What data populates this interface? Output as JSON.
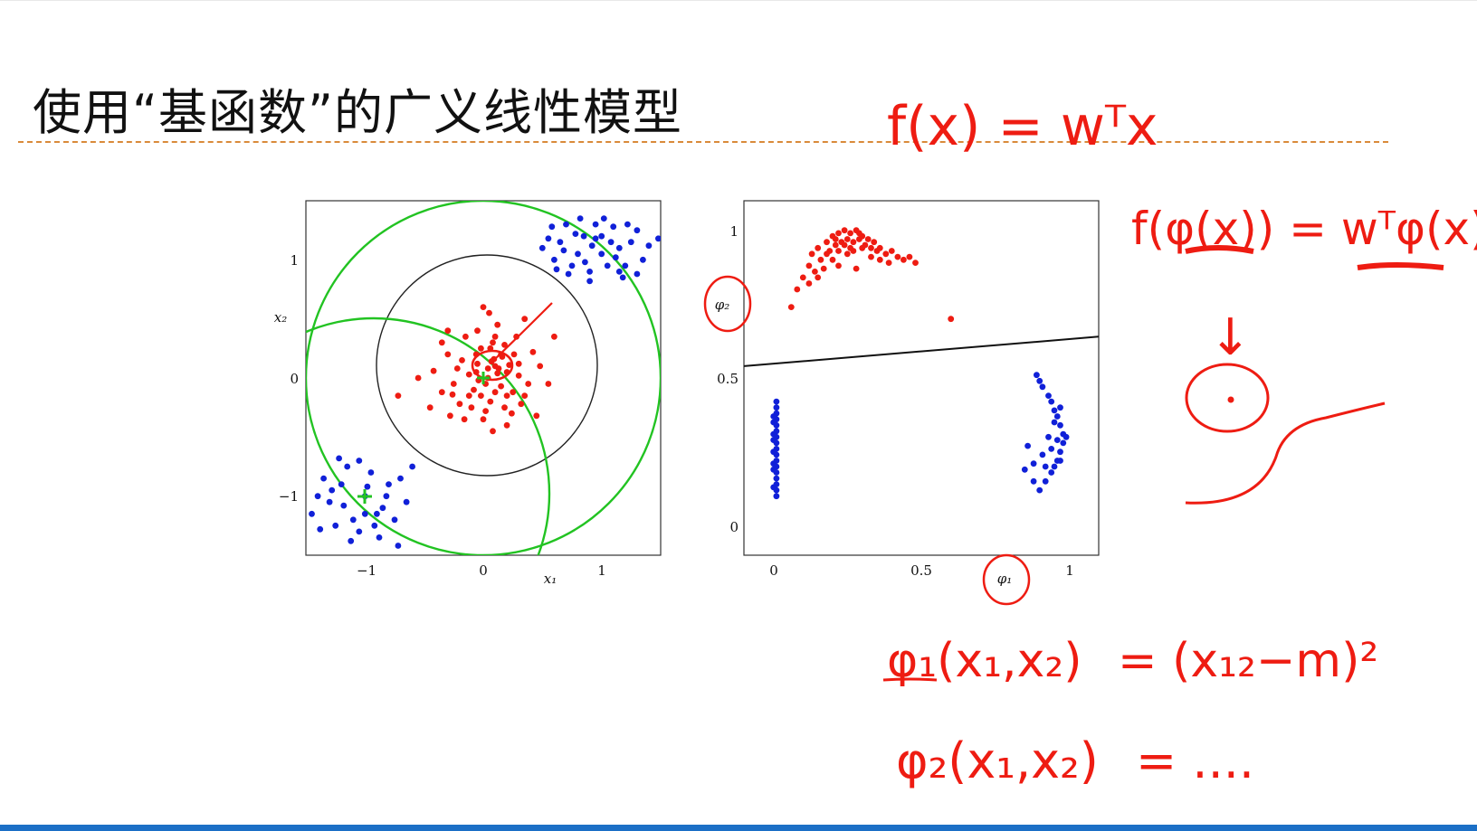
{
  "slide": {
    "title": "使用“基函数”的广义线性模型"
  },
  "handwriting": {
    "eq1": "f(x) = wᵀx",
    "eq2": "f(φ(x)) = wᵀφ(x)",
    "eq3_lhs": "φ₁(x₁,x₂)",
    "eq3_rhs": "= (x₁₂−m)²",
    "eq4_lhs": "φ₂(x₁,x₂)",
    "eq4_rhs": "= ....",
    "arrow": "↓"
  },
  "colors": {
    "class_red": "#ee1c12",
    "class_blue": "#1020d8",
    "basis_green": "#22c322",
    "ink_red": "#ee1c12",
    "rule_orange": "#d98a3a",
    "bar_blue": "#1b6fc6"
  },
  "chart_data": [
    {
      "type": "scatter",
      "xlabel": "x₁",
      "ylabel": "x₂",
      "xlim": [
        -1.5,
        1.5
      ],
      "ylim": [
        -1.5,
        1.5
      ],
      "xticks": [
        "−1",
        "0",
        "1"
      ],
      "yticks": [
        "1",
        "0",
        "−1"
      ],
      "basis_centers": [
        [
          0,
          0
        ],
        [
          -1,
          -1
        ]
      ],
      "series": [
        {
          "color": "red",
          "points": [
            [
              0.07,
              0.14
            ],
            [
              0.1,
              0.1
            ],
            [
              0.04,
              0.08
            ],
            [
              -0.05,
              0.12
            ],
            [
              0.12,
              0.04
            ],
            [
              0.16,
              0.18
            ],
            [
              -0.12,
              0.03
            ],
            [
              0.02,
              -0.05
            ],
            [
              -0.08,
              -0.1
            ],
            [
              0.15,
              -0.07
            ],
            [
              0.22,
              0.11
            ],
            [
              -0.18,
              0.15
            ],
            [
              -0.02,
              0.25
            ],
            [
              0.08,
              0.3
            ],
            [
              0.25,
              -0.12
            ],
            [
              -0.25,
              -0.05
            ],
            [
              -0.1,
              -0.25
            ],
            [
              0.06,
              -0.2
            ],
            [
              0.3,
              0.02
            ],
            [
              -0.3,
              0.2
            ],
            [
              0.18,
              -0.25
            ],
            [
              -0.2,
              -0.22
            ],
            [
              0.0,
              -0.35
            ],
            [
              0.35,
              -0.15
            ],
            [
              -0.35,
              -0.12
            ],
            [
              0.12,
              0.45
            ],
            [
              0.28,
              0.35
            ],
            [
              -0.15,
              0.35
            ],
            [
              0.42,
              0.22
            ],
            [
              -0.42,
              0.06
            ],
            [
              0.2,
              -0.4
            ],
            [
              -0.28,
              -0.32
            ],
            [
              0.05,
              0.55
            ],
            [
              0.55,
              -0.05
            ],
            [
              -0.55,
              0.0
            ],
            [
              0.0,
              0.6
            ],
            [
              0.45,
              -0.32
            ],
            [
              -0.45,
              -0.25
            ],
            [
              0.08,
              -0.45
            ],
            [
              -0.05,
              0.4
            ],
            [
              0.35,
              0.5
            ],
            [
              -0.3,
              0.4
            ],
            [
              0.15,
              0.2
            ],
            [
              0.04,
              0.0
            ],
            [
              -0.06,
              0.05
            ],
            [
              0.1,
              -0.12
            ],
            [
              0.2,
              0.05
            ],
            [
              0.26,
              0.2
            ],
            [
              -0.22,
              0.08
            ],
            [
              -0.12,
              -0.15
            ],
            [
              0.32,
              -0.22
            ],
            [
              -0.35,
              0.3
            ],
            [
              0.1,
              0.35
            ],
            [
              -0.02,
              -0.15
            ],
            [
              0.18,
              0.28
            ],
            [
              0.6,
              0.35
            ],
            [
              -0.72,
              -0.15
            ],
            [
              0.48,
              0.1
            ],
            [
              0.02,
              -0.28
            ],
            [
              -0.16,
              -0.35
            ],
            [
              0.38,
              -0.05
            ],
            [
              0.24,
              -0.3
            ],
            [
              -0.06,
              0.2
            ],
            [
              0.13,
              0.08
            ],
            [
              0.09,
              0.16
            ],
            [
              -0.04,
              -0.02
            ],
            [
              0.3,
              0.12
            ],
            [
              -0.26,
              -0.14
            ],
            [
              0.06,
              0.25
            ],
            [
              0.2,
              -0.15
            ]
          ]
        },
        {
          "color": "blue",
          "points": [
            [
              0.65,
              1.15
            ],
            [
              0.8,
              1.05
            ],
            [
              1.0,
              1.2
            ],
            [
              1.15,
              1.1
            ],
            [
              0.9,
              0.9
            ],
            [
              1.3,
              1.25
            ],
            [
              0.7,
              1.3
            ],
            [
              1.05,
              0.95
            ],
            [
              0.85,
              1.2
            ],
            [
              1.2,
              0.95
            ],
            [
              0.6,
              1.0
            ],
            [
              1.35,
              1.0
            ],
            [
              0.95,
              1.3
            ],
            [
              1.1,
              1.28
            ],
            [
              0.75,
              0.95
            ],
            [
              1.25,
              1.15
            ],
            [
              0.55,
              1.18
            ],
            [
              1.0,
              1.05
            ],
            [
              0.82,
              1.35
            ],
            [
              1.18,
              0.85
            ],
            [
              0.68,
              1.08
            ],
            [
              0.92,
              1.12
            ],
            [
              1.08,
              1.15
            ],
            [
              0.78,
              1.22
            ],
            [
              1.3,
              0.88
            ],
            [
              0.58,
              1.28
            ],
            [
              1.4,
              1.12
            ],
            [
              0.9,
              0.82
            ],
            [
              1.12,
              1.02
            ],
            [
              0.72,
              0.88
            ],
            [
              1.48,
              1.18
            ],
            [
              0.5,
              1.1
            ],
            [
              1.02,
              1.35
            ],
            [
              0.62,
              0.92
            ],
            [
              1.22,
              1.3
            ],
            [
              0.86,
              0.98
            ],
            [
              0.95,
              1.18
            ],
            [
              1.15,
              0.9
            ],
            [
              -1.0,
              -1.0
            ],
            [
              -1.2,
              -0.9
            ],
            [
              -0.85,
              -1.1
            ],
            [
              -1.1,
              -1.2
            ],
            [
              -0.95,
              -0.8
            ],
            [
              -1.3,
              -1.05
            ],
            [
              -0.8,
              -0.9
            ],
            [
              -1.15,
              -0.75
            ],
            [
              -1.4,
              -1.0
            ],
            [
              -0.75,
              -1.2
            ],
            [
              -1.05,
              -1.3
            ],
            [
              -0.9,
              -1.15
            ],
            [
              -1.25,
              -1.25
            ],
            [
              -0.7,
              -0.85
            ],
            [
              -1.35,
              -0.85
            ],
            [
              -1.05,
              -0.7
            ],
            [
              -0.65,
              -1.05
            ],
            [
              -1.45,
              -1.15
            ],
            [
              -0.88,
              -1.35
            ],
            [
              -1.18,
              -1.08
            ],
            [
              -0.98,
              -0.92
            ],
            [
              -1.28,
              -0.95
            ],
            [
              -0.82,
              -1.0
            ],
            [
              -1.12,
              -1.38
            ],
            [
              -0.72,
              -1.42
            ],
            [
              -1.38,
              -1.28
            ],
            [
              -1.0,
              -1.15
            ],
            [
              -0.6,
              -0.75
            ],
            [
              -1.22,
              -0.68
            ],
            [
              -0.92,
              -1.25
            ]
          ]
        }
      ]
    },
    {
      "type": "scatter",
      "xlabel": "φ₁",
      "ylabel": "φ₂",
      "xlim": [
        -0.1,
        1.1
      ],
      "ylim": [
        -0.1,
        1.1
      ],
      "xticks": [
        "0",
        "0.5",
        "1"
      ],
      "yticks": [
        "1",
        "0.5",
        "0"
      ],
      "decision_line": [
        [
          -0.1,
          0.54
        ],
        [
          1.1,
          0.64
        ]
      ],
      "series": [
        {
          "color": "red",
          "points": [
            [
              0.06,
              0.74
            ],
            [
              0.08,
              0.8
            ],
            [
              0.1,
              0.84
            ],
            [
              0.12,
              0.88
            ],
            [
              0.13,
              0.92
            ],
            [
              0.15,
              0.94
            ],
            [
              0.16,
              0.9
            ],
            [
              0.18,
              0.96
            ],
            [
              0.19,
              0.93
            ],
            [
              0.2,
              0.98
            ],
            [
              0.21,
              0.95
            ],
            [
              0.22,
              0.99
            ],
            [
              0.23,
              0.96
            ],
            [
              0.24,
              1.0
            ],
            [
              0.25,
              0.97
            ],
            [
              0.26,
              0.99
            ],
            [
              0.27,
              0.96
            ],
            [
              0.28,
              1.0
            ],
            [
              0.29,
              0.97
            ],
            [
              0.3,
              0.98
            ],
            [
              0.31,
              0.95
            ],
            [
              0.32,
              0.97
            ],
            [
              0.33,
              0.94
            ],
            [
              0.34,
              0.96
            ],
            [
              0.35,
              0.93
            ],
            [
              0.36,
              0.94
            ],
            [
              0.38,
              0.92
            ],
            [
              0.4,
              0.93
            ],
            [
              0.42,
              0.91
            ],
            [
              0.44,
              0.9
            ],
            [
              0.46,
              0.91
            ],
            [
              0.48,
              0.89
            ],
            [
              0.14,
              0.86
            ],
            [
              0.17,
              0.87
            ],
            [
              0.2,
              0.9
            ],
            [
              0.22,
              0.93
            ],
            [
              0.25,
              0.92
            ],
            [
              0.27,
              0.93
            ],
            [
              0.3,
              0.94
            ],
            [
              0.33,
              0.91
            ],
            [
              0.24,
              0.95
            ],
            [
              0.18,
              0.92
            ],
            [
              0.29,
              0.99
            ],
            [
              0.26,
              0.94
            ],
            [
              0.21,
              0.97
            ],
            [
              0.36,
              0.9
            ],
            [
              0.39,
              0.89
            ],
            [
              0.12,
              0.82
            ],
            [
              0.15,
              0.84
            ],
            [
              0.22,
              0.88
            ],
            [
              0.28,
              0.87
            ],
            [
              0.6,
              0.7
            ]
          ]
        },
        {
          "color": "blue",
          "points": [
            [
              0.01,
              0.1
            ],
            [
              0.01,
              0.12
            ],
            [
              0.01,
              0.14
            ],
            [
              0.01,
              0.16
            ],
            [
              0.01,
              0.18
            ],
            [
              0.01,
              0.2
            ],
            [
              0.01,
              0.22
            ],
            [
              0.01,
              0.24
            ],
            [
              0.01,
              0.26
            ],
            [
              0.01,
              0.28
            ],
            [
              0.01,
              0.3
            ],
            [
              0.01,
              0.32
            ],
            [
              0.01,
              0.34
            ],
            [
              0.01,
              0.36
            ],
            [
              0.01,
              0.38
            ],
            [
              0.01,
              0.4
            ],
            [
              0.01,
              0.42
            ],
            [
              0.0,
              0.13
            ],
            [
              0.0,
              0.19
            ],
            [
              0.0,
              0.25
            ],
            [
              0.0,
              0.31
            ],
            [
              0.0,
              0.37
            ],
            [
              0.0,
              0.21
            ],
            [
              0.0,
              0.29
            ],
            [
              0.0,
              0.35
            ],
            [
              0.89,
              0.51
            ],
            [
              0.9,
              0.49
            ],
            [
              0.91,
              0.47
            ],
            [
              0.93,
              0.44
            ],
            [
              0.94,
              0.42
            ],
            [
              0.95,
              0.39
            ],
            [
              0.96,
              0.37
            ],
            [
              0.97,
              0.34
            ],
            [
              0.98,
              0.31
            ],
            [
              0.98,
              0.28
            ],
            [
              0.97,
              0.25
            ],
            [
              0.96,
              0.22
            ],
            [
              0.95,
              0.2
            ],
            [
              0.94,
              0.18
            ],
            [
              0.92,
              0.15
            ],
            [
              0.9,
              0.12
            ],
            [
              0.88,
              0.15
            ],
            [
              0.91,
              0.24
            ],
            [
              0.93,
              0.3
            ],
            [
              0.95,
              0.35
            ],
            [
              0.96,
              0.29
            ],
            [
              0.97,
              0.22
            ],
            [
              0.94,
              0.26
            ],
            [
              0.86,
              0.27
            ],
            [
              0.85,
              0.19
            ],
            [
              0.88,
              0.21
            ],
            [
              0.92,
              0.2
            ],
            [
              0.99,
              0.3
            ],
            [
              0.97,
              0.4
            ]
          ]
        }
      ]
    }
  ]
}
